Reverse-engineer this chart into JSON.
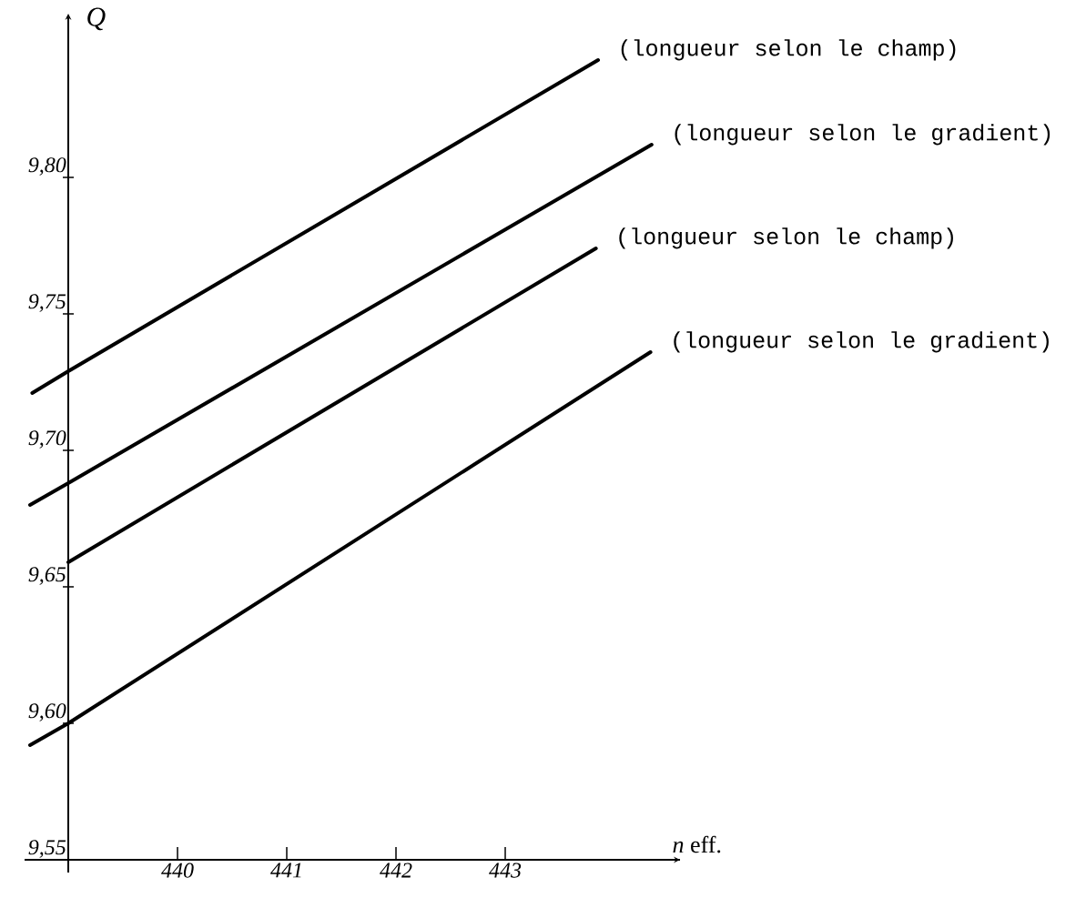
{
  "chart_data": {
    "type": "line",
    "xlabel": "*n* eff.",
    "ylabel": "Q",
    "xlim": [
      438.6,
      444.6
    ],
    "ylim": [
      9.55,
      9.86
    ],
    "xticks": [
      440,
      441,
      442,
      443
    ],
    "yticks": [
      {
        "value": 9.55,
        "label": "9,55"
      },
      {
        "value": 9.6,
        "label": "9,60"
      },
      {
        "value": 9.65,
        "label": "9,65"
      },
      {
        "value": 9.7,
        "label": "9,70"
      },
      {
        "value": 9.75,
        "label": "9,75"
      },
      {
        "value": 9.8,
        "label": "9,80"
      }
    ],
    "marker": "none",
    "line_style": "solid",
    "series": [
      {
        "name": "(longueur selon le champ)",
        "color": "#000000",
        "x": [
          438.67,
          439,
          443.85
        ],
        "values": [
          9.721,
          9.729,
          9.843
        ]
      },
      {
        "name": "(longueur selon le gradient)",
        "color": "#000000",
        "x": [
          438.65,
          439,
          444.34
        ],
        "values": [
          9.68,
          9.688,
          9.812
        ]
      },
      {
        "name": "(longueur selon le champ)",
        "color": "#000000",
        "x": [
          439,
          443.83
        ],
        "values": [
          9.659,
          9.774
        ]
      },
      {
        "name": "(longueur selon le gradient)",
        "color": "#000000",
        "x": [
          438.65,
          439,
          444.33
        ],
        "values": [
          9.592,
          9.6,
          9.736
        ]
      }
    ]
  }
}
